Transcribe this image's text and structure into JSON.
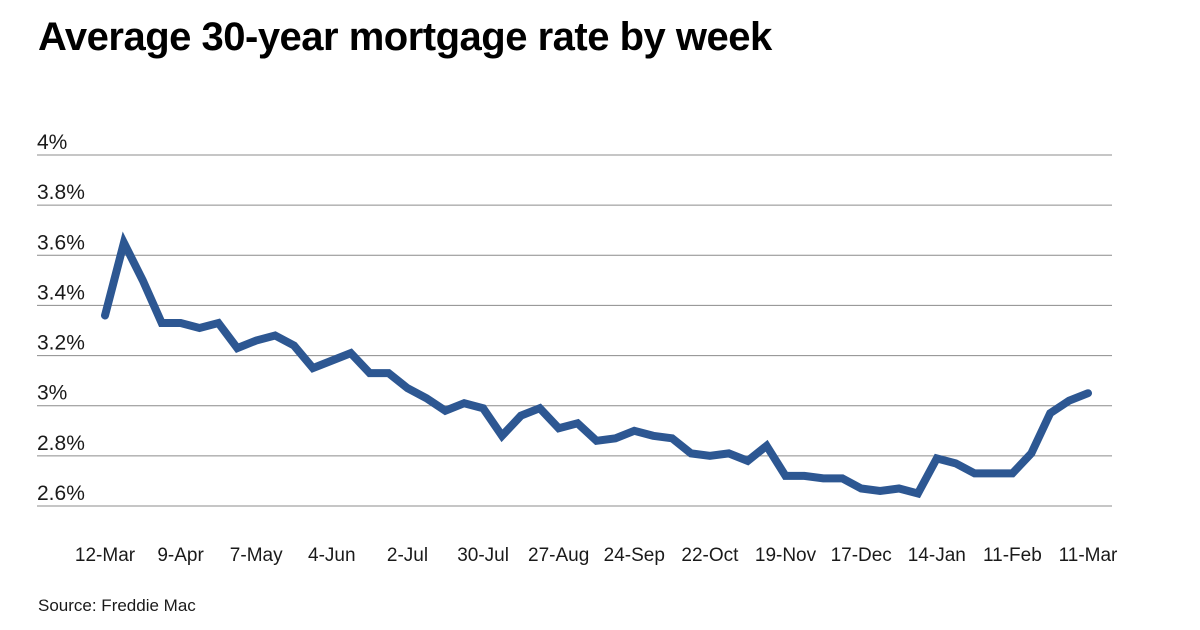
{
  "title": "Average 30-year mortgage rate by week",
  "source_note": "Source: Freddie Mac",
  "colors": {
    "line": "#2d5792",
    "grid": "#8c8c8c",
    "title_text": "#000000",
    "axis_text": "#1a1a1a",
    "background": "#ffffff"
  },
  "chart_data": {
    "type": "line",
    "title": "Average 30-year mortgage rate by week",
    "xlabel": "",
    "ylabel": "",
    "legend": false,
    "grid": true,
    "ylim": [
      2.6,
      4.0
    ],
    "x": [
      "12-Mar",
      "19-Mar",
      "26-Mar",
      "2-Apr",
      "9-Apr",
      "16-Apr",
      "23-Apr",
      "30-Apr",
      "7-May",
      "14-May",
      "21-May",
      "28-May",
      "4-Jun",
      "11-Jun",
      "18-Jun",
      "25-Jun",
      "2-Jul",
      "9-Jul",
      "16-Jul",
      "23-Jul",
      "30-Jul",
      "6-Aug",
      "13-Aug",
      "20-Aug",
      "27-Aug",
      "3-Sep",
      "10-Sep",
      "17-Sep",
      "24-Sep",
      "1-Oct",
      "8-Oct",
      "15-Oct",
      "22-Oct",
      "29-Oct",
      "5-Nov",
      "12-Nov",
      "19-Nov",
      "26-Nov",
      "3-Dec",
      "10-Dec",
      "17-Dec",
      "24-Dec",
      "31-Dec",
      "7-Jan",
      "14-Jan",
      "21-Jan",
      "28-Jan",
      "4-Feb",
      "11-Feb",
      "18-Feb",
      "25-Feb",
      "4-Mar",
      "11-Mar"
    ],
    "series": [
      {
        "name": "30-year mortgage rate (%)",
        "values": [
          3.36,
          3.65,
          3.5,
          3.33,
          3.33,
          3.31,
          3.33,
          3.23,
          3.26,
          3.28,
          3.24,
          3.15,
          3.18,
          3.21,
          3.13,
          3.13,
          3.07,
          3.03,
          2.98,
          3.01,
          2.99,
          2.88,
          2.96,
          2.99,
          2.91,
          2.93,
          2.86,
          2.87,
          2.9,
          2.88,
          2.87,
          2.81,
          2.8,
          2.81,
          2.78,
          2.84,
          2.72,
          2.72,
          2.71,
          2.71,
          2.67,
          2.66,
          2.67,
          2.65,
          2.79,
          2.77,
          2.73,
          2.73,
          2.73,
          2.81,
          2.97,
          3.02,
          3.05
        ]
      }
    ],
    "y_ticks": [
      {
        "value": 4.0,
        "label": "4%"
      },
      {
        "value": 3.8,
        "label": "3.8%"
      },
      {
        "value": 3.6,
        "label": "3.6%"
      },
      {
        "value": 3.4,
        "label": "3.4%"
      },
      {
        "value": 3.2,
        "label": "3.2%"
      },
      {
        "value": 3.0,
        "label": "3%"
      },
      {
        "value": 2.8,
        "label": "2.8%"
      },
      {
        "value": 2.6,
        "label": "2.6%"
      }
    ],
    "x_ticks": [
      {
        "index": 0,
        "label": "12-Mar"
      },
      {
        "index": 4,
        "label": "9-Apr"
      },
      {
        "index": 8,
        "label": "7-May"
      },
      {
        "index": 12,
        "label": "4-Jun"
      },
      {
        "index": 16,
        "label": "2-Jul"
      },
      {
        "index": 20,
        "label": "30-Jul"
      },
      {
        "index": 24,
        "label": "27-Aug"
      },
      {
        "index": 28,
        "label": "24-Sep"
      },
      {
        "index": 32,
        "label": "22-Oct"
      },
      {
        "index": 36,
        "label": "19-Nov"
      },
      {
        "index": 40,
        "label": "17-Dec"
      },
      {
        "index": 44,
        "label": "14-Jan"
      },
      {
        "index": 48,
        "label": "11-Feb"
      },
      {
        "index": 52,
        "label": "11-Mar"
      }
    ]
  }
}
